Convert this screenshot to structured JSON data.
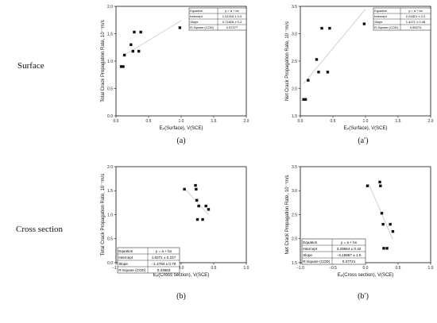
{
  "rows": [
    "Surface",
    "Cross section"
  ],
  "panel_labels": [
    "(a)",
    "(a′)",
    "(b)",
    "(b′)"
  ],
  "chart_data": [
    {
      "type": "scatter",
      "xlabel": "Eₚ(Surface), V(SCE)",
      "ylabel": "Total Crack Propagation Rate, 10⁻⁷m/s",
      "xlim": [
        0.0,
        2.0
      ],
      "ylim": [
        0.0,
        2.0
      ],
      "xticks": [
        "0.0",
        "0.5",
        "1.0",
        "1.5",
        "2.0"
      ],
      "yticks": [
        "0.0",
        "0.5",
        "1.0",
        "1.5",
        "2.0"
      ],
      "x": [
        0.08,
        0.11,
        0.13,
        0.23,
        0.26,
        0.28,
        0.35,
        0.38,
        0.98
      ],
      "y": [
        0.9,
        0.9,
        1.11,
        1.3,
        1.18,
        1.53,
        1.18,
        1.53,
        1.61
      ],
      "fit": {
        "x": [
          0.1,
          1.0
        ],
        "y": [
          1.09,
          1.74
        ]
      },
      "stats_table": [
        [
          "Equation",
          "y = a + bx"
        ],
        [
          "Intercept",
          "1.01316 ± 0.0"
        ],
        [
          "Slope",
          "0.71826 ± 0.2"
        ],
        [
          "R-Square (COD)",
          "0.57377"
        ]
      ],
      "legend_position": "top-right"
    },
    {
      "type": "scatter",
      "xlabel": "Eₚ(Surface), V(SCE)",
      "ylabel": "Net Crack Propagation Rate, 10⁻⁷m/s",
      "xlim": [
        0.0,
        2.0
      ],
      "ylim": [
        1.5,
        3.5
      ],
      "xticks": [
        "0.0",
        "0.5",
        "1.0",
        "1.5",
        "2.0"
      ],
      "yticks": [
        "1.5",
        "2.0",
        "2.5",
        "3.0",
        "3.5"
      ],
      "x": [
        0.05,
        0.08,
        0.12,
        0.25,
        0.28,
        0.33,
        0.42,
        0.45,
        0.98
      ],
      "y": [
        1.8,
        1.8,
        2.15,
        2.53,
        2.3,
        3.1,
        2.3,
        3.1,
        3.18
      ],
      "fit": {
        "x": [
          0.05,
          1.0
        ],
        "y": [
          2.09,
          3.45
        ]
      },
      "stats_table": [
        [
          "Equation",
          "y = a + bx"
        ],
        [
          "Intercept",
          "2.01821 ± 0.2"
        ],
        [
          "Slope",
          "1.4271 ± 0.48"
        ],
        [
          "R-Square (COD)",
          "0.55274"
        ]
      ],
      "legend_position": "top-right"
    },
    {
      "type": "scatter",
      "xlabel": "Eₚ(Cross section), V(SCE)",
      "ylabel": "Total Crack Propagation Rate, 10⁻⁷m/s",
      "xlim": [
        -1.0,
        1.0
      ],
      "ylim": [
        0.0,
        2.0
      ],
      "xticks": [
        "−1.0",
        "−0.5",
        "0.0",
        "0.5",
        "1.0"
      ],
      "yticks": [
        "0.0",
        "0.5",
        "1.0",
        "1.5",
        "2.0"
      ],
      "x": [
        0.05,
        0.22,
        0.23,
        0.24,
        0.25,
        0.27,
        0.33,
        0.38,
        0.42
      ],
      "y": [
        1.53,
        1.61,
        1.53,
        1.3,
        0.9,
        1.18,
        0.9,
        1.18,
        1.11
      ],
      "fit": {
        "x": [
          0.05,
          0.42
        ],
        "y": [
          1.55,
          1.0
        ]
      },
      "stats_table": [
        [
          "Equation",
          "y = a + bx"
        ],
        [
          "Intercept",
          "1.6271 ± 0.217"
        ],
        [
          "Slope",
          "−1.4784 ± 0.78"
        ],
        [
          "R-Square (COD)",
          "0.33863"
        ]
      ],
      "legend_position": "bottom-left"
    },
    {
      "type": "scatter",
      "xlabel": "Eₚ(Cross section), V(SCE)",
      "ylabel": "Net Crack Propagation Rate, 10⁻⁷m/s",
      "xlim": [
        -1.0,
        1.0
      ],
      "ylim": [
        1.5,
        3.5
      ],
      "xticks": [
        "−1.0",
        "−0.5",
        "0.0",
        "0.5",
        "1.0"
      ],
      "yticks": [
        "1.5",
        "2.0",
        "2.5",
        "3.0",
        "3.5"
      ],
      "x": [
        0.03,
        0.22,
        0.23,
        0.25,
        0.27,
        0.28,
        0.33,
        0.38,
        0.42
      ],
      "y": [
        3.1,
        3.18,
        3.1,
        2.53,
        2.3,
        1.8,
        1.8,
        2.3,
        2.15
      ],
      "fit": {
        "x": [
          0.05,
          0.42
        ],
        "y": [
          3.14,
          1.98
        ]
      },
      "stats_table": [
        [
          "Equation",
          "y = a + bx"
        ],
        [
          "Intercept",
          "3.29564 ± 0.42"
        ],
        [
          "Slope",
          "−3.15867 ± 1.5"
        ],
        [
          "R-Square (COD)",
          "0.37721"
        ]
      ],
      "legend_position": "bottom-left"
    }
  ]
}
